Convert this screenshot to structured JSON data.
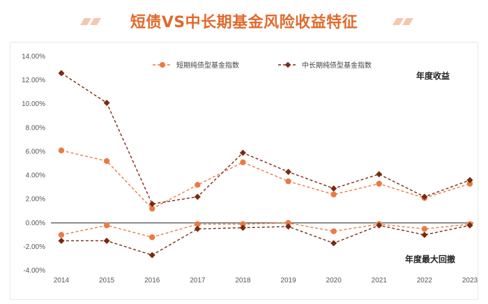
{
  "header": {
    "title": "短债VS中长期基金风险收益特征"
  },
  "colors": {
    "short": "#ec7a42",
    "long": "#7a2a10",
    "accent": "#e06a2c"
  },
  "chart_data": {
    "type": "line",
    "title": "短债VS中长期基金风险收益特征",
    "categories": [
      "2014",
      "2015",
      "2016",
      "2017",
      "2018",
      "2019",
      "2020",
      "2021",
      "2022",
      "2023"
    ],
    "ylim": [
      -4,
      14
    ],
    "yticks": [
      "-4.00%",
      "-2.00%",
      "0.00%",
      "2.00%",
      "4.00%",
      "6.00%",
      "8.00%",
      "10.00%",
      "12.00%",
      "14.00%"
    ],
    "series": [
      {
        "name": "短期纯债型基金指数",
        "group": "annual_return",
        "marker": "circle",
        "color": "#ec7a42",
        "values": [
          6.1,
          5.2,
          1.2,
          3.2,
          5.1,
          3.5,
          2.4,
          3.3,
          2.1,
          3.3
        ]
      },
      {
        "name": "中长期纯债型基金指数",
        "group": "annual_return",
        "marker": "diamond",
        "color": "#7a2a10",
        "values": [
          12.6,
          10.1,
          1.6,
          2.2,
          5.9,
          4.3,
          2.9,
          4.1,
          2.2,
          3.6
        ]
      },
      {
        "name": "短期纯债型基金指数",
        "group": "max_drawdown",
        "marker": "circle",
        "color": "#ec7a42",
        "values": [
          -1.0,
          -0.2,
          -1.2,
          -0.1,
          -0.1,
          0.0,
          -0.7,
          -0.1,
          -0.5,
          -0.1
        ]
      },
      {
        "name": "中长期纯债型基金指数",
        "group": "max_drawdown",
        "marker": "diamond",
        "color": "#7a2a10",
        "values": [
          -1.5,
          -1.5,
          -2.7,
          -0.5,
          -0.4,
          -0.3,
          -1.7,
          -0.2,
          -1.0,
          -0.2
        ]
      }
    ],
    "legend": [
      "短期纯债型基金指数",
      "中长期纯债型基金指数"
    ],
    "annotations": {
      "top": "年度收益",
      "bottom": "年度最大回撤"
    }
  }
}
